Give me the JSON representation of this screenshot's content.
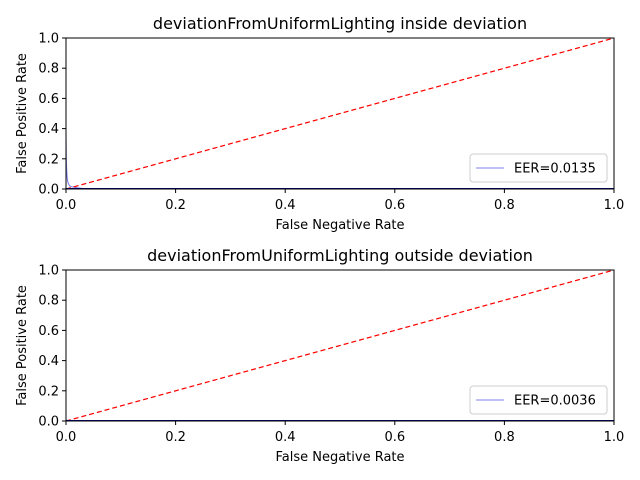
{
  "chart_data": [
    {
      "type": "line",
      "title": "deviationFromUniformLighting inside deviation",
      "xlabel": "False Negative Rate",
      "ylabel": "False Positive Rate",
      "xlim": [
        0.0,
        1.0
      ],
      "ylim": [
        0.0,
        1.0
      ],
      "xticks": [
        "0.0",
        "0.2",
        "0.4",
        "0.6",
        "0.8",
        "1.0"
      ],
      "yticks": [
        "0.0",
        "0.2",
        "0.4",
        "0.6",
        "0.8",
        "1.0"
      ],
      "grid": false,
      "legend_position": "bottom-right",
      "series": [
        {
          "name": "EER=0.0135",
          "color": "#8080f0",
          "x": [
            0.0,
            0.0005,
            0.001,
            0.002,
            0.003,
            0.005,
            0.007,
            0.01,
            0.0135,
            0.02,
            0.03,
            0.05,
            0.1,
            0.2,
            0.4,
            0.6,
            0.8,
            1.0
          ],
          "y": [
            0.34,
            0.2,
            0.14,
            0.08,
            0.05,
            0.03,
            0.02,
            0.015,
            0.0135,
            0.008,
            0.004,
            0.002,
            0.0008,
            0.0003,
            0.0001,
            0.0,
            0.0,
            0.0
          ]
        },
        {
          "name": "",
          "style": "dashed",
          "color": "#ff0000",
          "x": [
            0.0,
            1.0
          ],
          "y": [
            0.0,
            1.0
          ]
        }
      ]
    },
    {
      "type": "line",
      "title": "deviationFromUniformLighting outside deviation",
      "xlabel": "False Negative Rate",
      "ylabel": "False Positive Rate",
      "xlim": [
        0.0,
        1.0
      ],
      "ylim": [
        0.0,
        1.0
      ],
      "xticks": [
        "0.0",
        "0.2",
        "0.4",
        "0.6",
        "0.8",
        "1.0"
      ],
      "yticks": [
        "0.0",
        "0.2",
        "0.4",
        "0.6",
        "0.8",
        "1.0"
      ],
      "grid": false,
      "legend_position": "bottom-right",
      "series": [
        {
          "name": "EER=0.0036",
          "color": "#8080f0",
          "x": [
            0.0,
            0.001,
            0.002,
            0.0036,
            0.006,
            0.01,
            0.05,
            0.2,
            0.5,
            1.0
          ],
          "y": [
            0.008,
            0.005,
            0.004,
            0.0036,
            0.002,
            0.001,
            0.0003,
            0.0,
            0.0,
            0.0
          ]
        },
        {
          "name": "",
          "style": "dashed",
          "color": "#ff0000",
          "x": [
            0.0,
            1.0
          ],
          "y": [
            0.0,
            1.0
          ]
        }
      ]
    }
  ]
}
